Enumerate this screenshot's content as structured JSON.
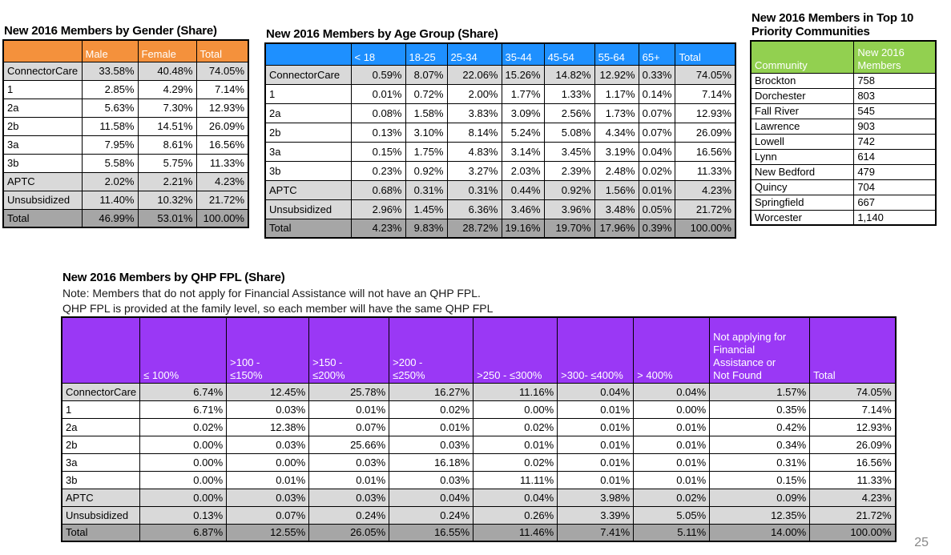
{
  "page": {
    "number": "25"
  },
  "colors": {
    "gender_header": "#F4913C",
    "age_header": "#1E90FF",
    "communities_header": "#92D050",
    "fpl_header": "#9A38F5",
    "row_shades": {
      "white": "#FFFFFF",
      "light": "#D9D9D9",
      "dark": "#A6A6A6"
    },
    "border": "#000000"
  },
  "tables": {
    "gender": {
      "title": "New 2016 Members by Gender (Share)",
      "columns": [
        "",
        "Male",
        "Female",
        "Total"
      ],
      "rows": [
        {
          "label": "ConnectorCare",
          "shade": "light",
          "values": [
            "33.58%",
            "40.48%",
            "74.05%"
          ]
        },
        {
          "label": "1",
          "shade": "white",
          "values": [
            "2.85%",
            "4.29%",
            "7.14%"
          ]
        },
        {
          "label": "2a",
          "shade": "white",
          "values": [
            "5.63%",
            "7.30%",
            "12.93%"
          ]
        },
        {
          "label": "2b",
          "shade": "white",
          "values": [
            "11.58%",
            "14.51%",
            "26.09%"
          ]
        },
        {
          "label": "3a",
          "shade": "white",
          "values": [
            "7.95%",
            "8.61%",
            "16.56%"
          ]
        },
        {
          "label": "3b",
          "shade": "white",
          "values": [
            "5.58%",
            "5.75%",
            "11.33%"
          ]
        },
        {
          "label": "APTC",
          "shade": "light",
          "values": [
            "2.02%",
            "2.21%",
            "4.23%"
          ]
        },
        {
          "label": "Unsubsidized",
          "shade": "light",
          "values": [
            "11.40%",
            "10.32%",
            "21.72%"
          ]
        },
        {
          "label": "Total",
          "shade": "dark",
          "values": [
            "46.99%",
            "53.01%",
            "100.00%"
          ]
        }
      ]
    },
    "age": {
      "title": "New 2016 Members by Age Group (Share)",
      "columns": [
        "",
        "< 18",
        "18-25",
        "25-34",
        "35-44",
        "45-54",
        "55-64",
        "65+",
        "Total"
      ],
      "rows": [
        {
          "label": "ConnectorCare",
          "shade": "light",
          "values": [
            "0.59%",
            "8.07%",
            "22.06%",
            "15.26%",
            "14.82%",
            "12.92%",
            "0.33%",
            "74.05%"
          ]
        },
        {
          "label": "1",
          "shade": "white",
          "values": [
            "0.01%",
            "0.72%",
            "2.00%",
            "1.77%",
            "1.33%",
            "1.17%",
            "0.14%",
            "7.14%"
          ]
        },
        {
          "label": "2a",
          "shade": "white",
          "values": [
            "0.08%",
            "1.58%",
            "3.83%",
            "3.09%",
            "2.56%",
            "1.73%",
            "0.07%",
            "12.93%"
          ]
        },
        {
          "label": "2b",
          "shade": "white",
          "values": [
            "0.13%",
            "3.10%",
            "8.14%",
            "5.24%",
            "5.08%",
            "4.34%",
            "0.07%",
            "26.09%"
          ]
        },
        {
          "label": "3a",
          "shade": "white",
          "values": [
            "0.15%",
            "1.75%",
            "4.83%",
            "3.14%",
            "3.45%",
            "3.19%",
            "0.04%",
            "16.56%"
          ]
        },
        {
          "label": "3b",
          "shade": "white",
          "values": [
            "0.23%",
            "0.92%",
            "3.27%",
            "2.03%",
            "2.39%",
            "2.48%",
            "0.02%",
            "11.33%"
          ]
        },
        {
          "label": "APTC",
          "shade": "light",
          "values": [
            "0.68%",
            "0.31%",
            "0.31%",
            "0.44%",
            "0.92%",
            "1.56%",
            "0.01%",
            "4.23%"
          ]
        },
        {
          "label": "Unsubsidized",
          "shade": "light",
          "values": [
            "2.96%",
            "1.45%",
            "6.36%",
            "3.46%",
            "3.96%",
            "3.48%",
            "0.05%",
            "21.72%"
          ]
        },
        {
          "label": "Total",
          "shade": "dark",
          "values": [
            "4.23%",
            "9.83%",
            "28.72%",
            "19.16%",
            "19.70%",
            "17.96%",
            "0.39%",
            "100.00%"
          ]
        }
      ]
    },
    "communities": {
      "title": "New 2016 Members in Top 10 Priority Communities",
      "columns": [
        "Community",
        "New 2016 Members"
      ],
      "rows": [
        {
          "label": "Brockton",
          "shade": "white",
          "values": [
            "758"
          ]
        },
        {
          "label": "Dorchester",
          "shade": "white",
          "values": [
            "803"
          ]
        },
        {
          "label": "Fall River",
          "shade": "white",
          "values": [
            "545"
          ]
        },
        {
          "label": "Lawrence",
          "shade": "white",
          "values": [
            "903"
          ]
        },
        {
          "label": "Lowell",
          "shade": "white",
          "values": [
            "742"
          ]
        },
        {
          "label": "Lynn",
          "shade": "white",
          "values": [
            "614"
          ]
        },
        {
          "label": "New Bedford",
          "shade": "white",
          "values": [
            "479"
          ]
        },
        {
          "label": "Quincy",
          "shade": "white",
          "values": [
            "704"
          ]
        },
        {
          "label": "Springfield",
          "shade": "white",
          "values": [
            "667"
          ]
        },
        {
          "label": "Worcester",
          "shade": "white",
          "values": [
            "1,140"
          ]
        }
      ]
    },
    "fpl": {
      "title": "New 2016 Members by QHP FPL (Share)",
      "notes": [
        "Note: Members that do not apply for Financial Assistance will not have an QHP FPL.",
        "QHP FPL is provided at the family level, so each member will have the same QHP FPL"
      ],
      "columns": [
        "",
        "≤ 100%",
        ">100 -\n≤150%",
        ">150 -\n≤200%",
        ">200 -\n≤250%",
        ">250 - ≤300%",
        ">300- ≤400%",
        "> 400%",
        "Not applying for\nFinancial\nAssistance or\nNot Found",
        "Total"
      ],
      "rows": [
        {
          "label": "ConnectorCare",
          "shade": "light",
          "values": [
            "6.74%",
            "12.45%",
            "25.78%",
            "16.27%",
            "11.16%",
            "0.04%",
            "0.04%",
            "1.57%",
            "74.05%"
          ]
        },
        {
          "label": "1",
          "shade": "white",
          "values": [
            "6.71%",
            "0.03%",
            "0.01%",
            "0.02%",
            "0.00%",
            "0.01%",
            "0.00%",
            "0.35%",
            "7.14%"
          ]
        },
        {
          "label": "2a",
          "shade": "white",
          "values": [
            "0.02%",
            "12.38%",
            "0.07%",
            "0.01%",
            "0.02%",
            "0.01%",
            "0.01%",
            "0.42%",
            "12.93%"
          ]
        },
        {
          "label": "2b",
          "shade": "white",
          "values": [
            "0.00%",
            "0.03%",
            "25.66%",
            "0.03%",
            "0.01%",
            "0.01%",
            "0.01%",
            "0.34%",
            "26.09%"
          ]
        },
        {
          "label": "3a",
          "shade": "white",
          "values": [
            "0.00%",
            "0.00%",
            "0.03%",
            "16.18%",
            "0.02%",
            "0.01%",
            "0.01%",
            "0.31%",
            "16.56%"
          ]
        },
        {
          "label": "3b",
          "shade": "white",
          "values": [
            "0.00%",
            "0.01%",
            "0.01%",
            "0.03%",
            "11.11%",
            "0.01%",
            "0.01%",
            "0.15%",
            "11.33%"
          ]
        },
        {
          "label": "APTC",
          "shade": "light",
          "values": [
            "0.00%",
            "0.03%",
            "0.03%",
            "0.04%",
            "0.04%",
            "3.98%",
            "0.02%",
            "0.09%",
            "4.23%"
          ]
        },
        {
          "label": "Unsubsidized",
          "shade": "light",
          "values": [
            "0.13%",
            "0.07%",
            "0.24%",
            "0.24%",
            "0.26%",
            "3.39%",
            "5.05%",
            "12.35%",
            "21.72%"
          ]
        },
        {
          "label": "Total",
          "shade": "dark",
          "values": [
            "6.87%",
            "12.55%",
            "26.05%",
            "16.55%",
            "11.46%",
            "7.41%",
            "5.11%",
            "14.00%",
            "100.00%"
          ]
        }
      ]
    }
  }
}
